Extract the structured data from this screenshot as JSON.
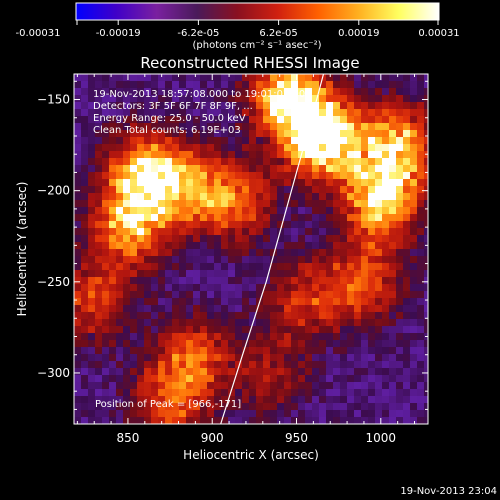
{
  "chart_data": {
    "type": "heatmap",
    "title": "Reconstructed RHESSI Image",
    "colorbar": {
      "ticks": [
        "-0.00031",
        "-0.00019",
        "-6.2e-05",
        "6.2e-05",
        "0.00019",
        "0.00031"
      ],
      "unit_label": "(photons cm⁻² s⁻¹ asec⁻²)",
      "range": [
        -0.00031,
        0.00031
      ],
      "colors": [
        "#0000ff",
        "#4000c8",
        "#7a20a0",
        "#4a1a5a",
        "#8a1020",
        "#d02010",
        "#ff6000",
        "#ffb020",
        "#ffff60",
        "#ffffff"
      ]
    },
    "xlabel": "Heliocentric X (arcsec)",
    "ylabel": "Heliocentric Y (arcsec)",
    "xlim": [
      818,
      1028
    ],
    "ylim": [
      -328,
      -136
    ],
    "xticks": [
      "850",
      "900",
      "950",
      "1000"
    ],
    "yticks": [
      "-150",
      "-200",
      "-250",
      "-300"
    ],
    "annotations": [
      "19-Nov-2013 18:57:08.000 to 19:01:02.000",
      "Detectors: 3F 5F 6F 7F 8F 9F, ...",
      "Energy Range: 25.0 - 50.0 keV",
      "Clean      Total counts: 6.19E+03"
    ],
    "peak_label": "Position of Peak = [966,-171]",
    "peak": [
      966,
      -171
    ],
    "limb_curve": [
      [
        905,
        -328
      ],
      [
        918,
        -290
      ],
      [
        932,
        -250
      ],
      [
        944,
        -210
      ],
      [
        956,
        -170
      ],
      [
        962,
        -150
      ],
      [
        966,
        -136
      ]
    ],
    "bright_regions": [
      {
        "x": 966,
        "y": -171,
        "level": 1.0
      },
      {
        "x": 945,
        "y": -148,
        "level": 0.85
      },
      {
        "x": 1000,
        "y": -205,
        "level": 0.8
      },
      {
        "x": 1010,
        "y": -175,
        "level": 0.7
      },
      {
        "x": 860,
        "y": -190,
        "level": 0.75
      },
      {
        "x": 850,
        "y": -220,
        "level": 0.65
      },
      {
        "x": 885,
        "y": -200,
        "level": 0.55
      },
      {
        "x": 915,
        "y": -205,
        "level": 0.5
      },
      {
        "x": 890,
        "y": -290,
        "level": 0.45
      },
      {
        "x": 875,
        "y": -315,
        "level": 0.5
      },
      {
        "x": 830,
        "y": -260,
        "level": 0.45
      },
      {
        "x": 955,
        "y": -260,
        "level": 0.4
      },
      {
        "x": 990,
        "y": -250,
        "level": 0.5
      },
      {
        "x": 935,
        "y": -300,
        "level": 0.3
      }
    ]
  },
  "footer": {
    "timestamp": "19-Nov-2013 23:04"
  }
}
